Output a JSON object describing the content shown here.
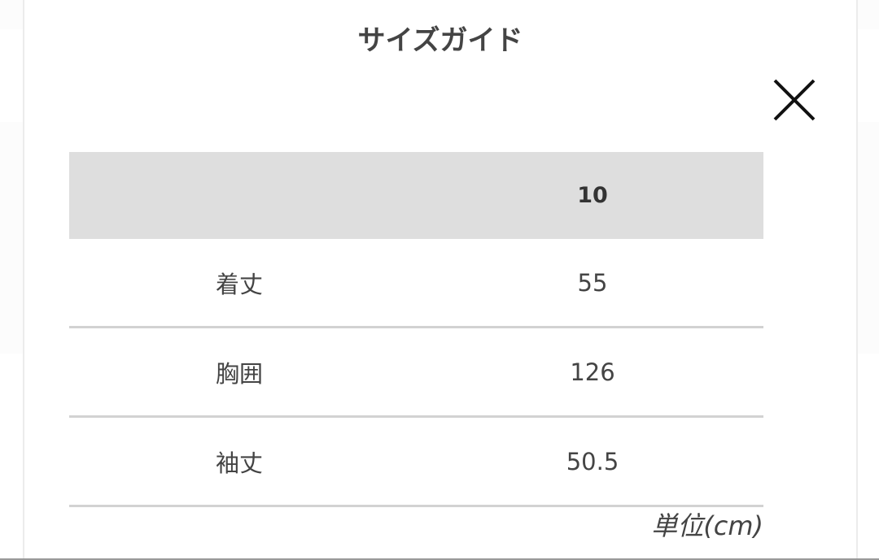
{
  "modal": {
    "title": "サイズガイド",
    "close_icon": "close-x-icon",
    "table": {
      "headers": [
        "",
        "10"
      ],
      "rows": [
        {
          "label": "着丈",
          "value": "55"
        },
        {
          "label": "胸囲",
          "value": "126"
        },
        {
          "label": "袖丈",
          "value": "50.5"
        }
      ]
    },
    "unit": "単位(cm)"
  }
}
